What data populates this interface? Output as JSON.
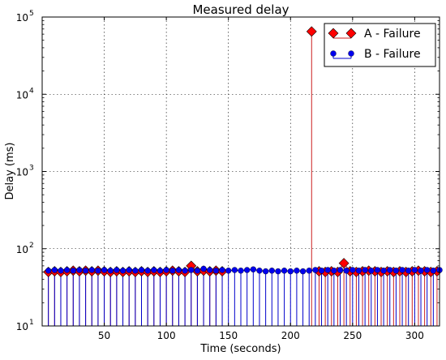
{
  "chart_data": {
    "type": "stem",
    "title": "Measured delay",
    "xlabel": "Time (seconds)",
    "ylabel": "Delay (ms)",
    "xlim": [
      0,
      320
    ],
    "ylim": [
      10,
      100000
    ],
    "yscale": "log",
    "grid": true,
    "legend_position": "top-right",
    "x_ticks": [
      "50",
      "100",
      "150",
      "200",
      "250",
      "300"
    ],
    "x_tick_values": [
      50,
      100,
      150,
      200,
      250,
      300
    ],
    "y_ticks": [
      {
        "value": 10,
        "base": "10",
        "exp": "1"
      },
      {
        "value": 100,
        "base": "10",
        "exp": "2"
      },
      {
        "value": 1000,
        "base": "10",
        "exp": "3"
      },
      {
        "value": 10000,
        "base": "10",
        "exp": "4"
      },
      {
        "value": 100000,
        "base": "10",
        "exp": "5"
      }
    ],
    "series": [
      {
        "name": "A - Failure",
        "color": "#ff0000",
        "stem_color": "#cc2222",
        "marker": "diamond",
        "segments": [
          {
            "x": [
              5,
              10,
              15,
              20,
              25,
              30,
              35,
              40,
              45,
              50,
              55,
              60,
              65,
              70,
              75,
              80,
              85,
              90,
              95,
              100,
              105,
              110,
              115,
              120,
              125,
              130,
              135,
              140,
              145
            ],
            "y": [
              50,
              51,
              50,
              51,
              52,
              51,
              52,
              51,
              52,
              51,
              50,
              51,
              50,
              51,
              50,
              51,
              50,
              51,
              50,
              51,
              52,
              51,
              50,
              60,
              51,
              52,
              51,
              52,
              51
            ]
          },
          {
            "x": [
              217
            ],
            "y": [
              65000
            ]
          },
          {
            "x": [
              223,
              228,
              233,
              238,
              243,
              248,
              253,
              258,
              263,
              268,
              273,
              278,
              283,
              288,
              293,
              298,
              303,
              308,
              313,
              318
            ],
            "y": [
              51,
              50,
              51,
              50,
              65,
              51,
              50,
              51,
              52,
              51,
              50,
              51,
              50,
              51,
              50,
              51,
              52,
              51,
              50,
              51
            ]
          }
        ]
      },
      {
        "name": "B - Failure",
        "color": "#0000ee",
        "stem_color": "#0000cc",
        "marker": "circle",
        "segments": [
          {
            "x": [
              5,
              10,
              15,
              20,
              25,
              30,
              35,
              40,
              45,
              50,
              55,
              60,
              65,
              70,
              75,
              80,
              85,
              90,
              95,
              100,
              105,
              110,
              115,
              120,
              125,
              130,
              135,
              140,
              145,
              150,
              155,
              160,
              165,
              170,
              175,
              180,
              185,
              190,
              195,
              200,
              205,
              210,
              215,
              220,
              225,
              230,
              235,
              240,
              245,
              250,
              255,
              260,
              265,
              270,
              275,
              280,
              285,
              290,
              295,
              300,
              305,
              310,
              315,
              320
            ],
            "y": [
              52,
              53,
              52,
              53,
              52,
              53,
              52,
              53,
              52,
              53,
              52,
              53,
              52,
              53,
              52,
              53,
              52,
              53,
              52,
              53,
              52,
              53,
              52,
              53,
              52,
              55,
              53,
              52,
              53,
              52,
              53,
              52,
              53,
              54,
              52,
              51,
              52,
              51,
              52,
              51,
              52,
              51,
              52,
              53,
              52,
              53,
              52,
              53,
              52,
              53,
              52,
              53,
              52,
              53,
              52,
              53,
              52,
              53,
              52,
              53,
              52,
              53,
              52,
              53
            ]
          }
        ]
      }
    ]
  }
}
